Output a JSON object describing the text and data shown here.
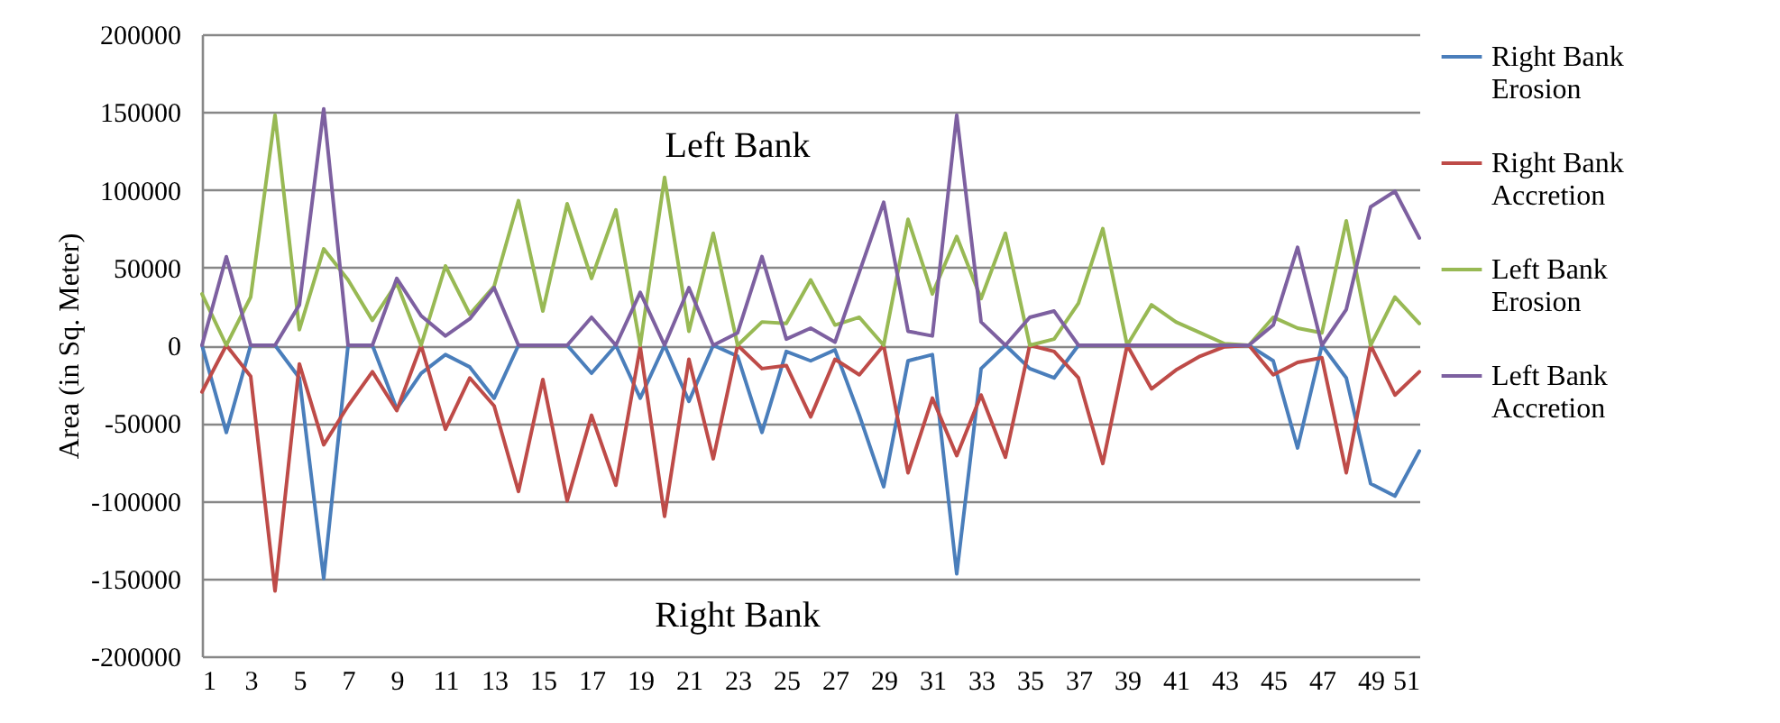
{
  "chart_data": {
    "type": "line",
    "ylabel": "Area (in Sq. Meter)",
    "x": [
      1,
      2,
      3,
      4,
      5,
      6,
      7,
      8,
      9,
      10,
      11,
      12,
      13,
      14,
      15,
      16,
      17,
      18,
      19,
      20,
      21,
      22,
      23,
      24,
      25,
      26,
      27,
      28,
      29,
      30,
      31,
      32,
      33,
      34,
      35,
      36,
      37,
      38,
      39,
      40,
      41,
      42,
      43,
      44,
      45,
      46,
      47,
      48,
      49,
      50,
      51
    ],
    "xlim": [
      1,
      51
    ],
    "xticks": [
      1,
      3,
      5,
      7,
      9,
      11,
      13,
      15,
      17,
      19,
      21,
      23,
      25,
      27,
      29,
      31,
      33,
      35,
      37,
      39,
      41,
      43,
      45,
      47,
      49,
      51
    ],
    "ylim": [
      -200000,
      200000
    ],
    "yticks": [
      -200000,
      -150000,
      -100000,
      -50000,
      0,
      50000,
      100000,
      150000,
      200000
    ],
    "grid": "y",
    "legend": "right",
    "marker": "none",
    "line_style": "solid",
    "annotations": [
      "Left Bank",
      "Right Bank"
    ],
    "series": [
      {
        "name": "Right Bank Erosion",
        "color": "#4a7ebb",
        "values": [
          0,
          -56000,
          0,
          0,
          -21000,
          -150000,
          0,
          0,
          -41000,
          -18000,
          -6000,
          -14000,
          -34000,
          0,
          0,
          0,
          -18000,
          0,
          -34000,
          0,
          -36000,
          0,
          -7000,
          -56000,
          -4000,
          -10000,
          -3000,
          -45000,
          -91000,
          -10000,
          -6000,
          -147000,
          -15000,
          0,
          -15000,
          -21000,
          0,
          0,
          0,
          0,
          0,
          0,
          0,
          0,
          -10000,
          -66000,
          0,
          -21000,
          -89000,
          -97000,
          -68000
        ]
      },
      {
        "name": "Right Bank Accretion",
        "color": "#be4b48",
        "values": [
          -30000,
          0,
          -20000,
          -158000,
          -12000,
          -64000,
          -39000,
          -17000,
          -42000,
          0,
          -54000,
          -21000,
          -39000,
          -94000,
          -22000,
          -100000,
          -45000,
          -90000,
          -1000,
          -110000,
          -9000,
          -73000,
          0,
          -15000,
          -13000,
          -46000,
          -9000,
          -19000,
          0,
          -82000,
          -34000,
          -71000,
          -32000,
          -72000,
          0,
          -4000,
          -21000,
          -76000,
          0,
          -28000,
          -16000,
          -7000,
          -1000,
          0,
          -19000,
          -11000,
          -8000,
          -82000,
          0,
          -32000,
          -17000
        ]
      },
      {
        "name": "Left Bank Erosion",
        "color": "#98b954",
        "values": [
          33000,
          0,
          31000,
          148000,
          10000,
          62000,
          42000,
          16000,
          40000,
          0,
          51000,
          20000,
          38000,
          93000,
          22000,
          91000,
          43000,
          87000,
          0,
          108000,
          9000,
          72000,
          0,
          15000,
          14000,
          42000,
          13000,
          18000,
          0,
          81000,
          33000,
          70000,
          30000,
          72000,
          0,
          4000,
          27000,
          75000,
          0,
          26000,
          15000,
          8000,
          1000,
          0,
          18000,
          11000,
          8000,
          80000,
          0,
          31000,
          14000
        ]
      },
      {
        "name": "Left Bank Accretion",
        "color": "#7d60a0",
        "values": [
          0,
          57000,
          0,
          0,
          26000,
          152000,
          0,
          0,
          43000,
          19000,
          6000,
          17000,
          37000,
          0,
          0,
          0,
          18000,
          0,
          34000,
          0,
          37000,
          0,
          8000,
          57000,
          4000,
          11000,
          2000,
          47000,
          92000,
          9000,
          6000,
          148000,
          15000,
          0,
          18000,
          22000,
          0,
          0,
          0,
          0,
          0,
          0,
          0,
          0,
          13000,
          63000,
          0,
          23000,
          89000,
          99000,
          69000
        ]
      }
    ]
  }
}
